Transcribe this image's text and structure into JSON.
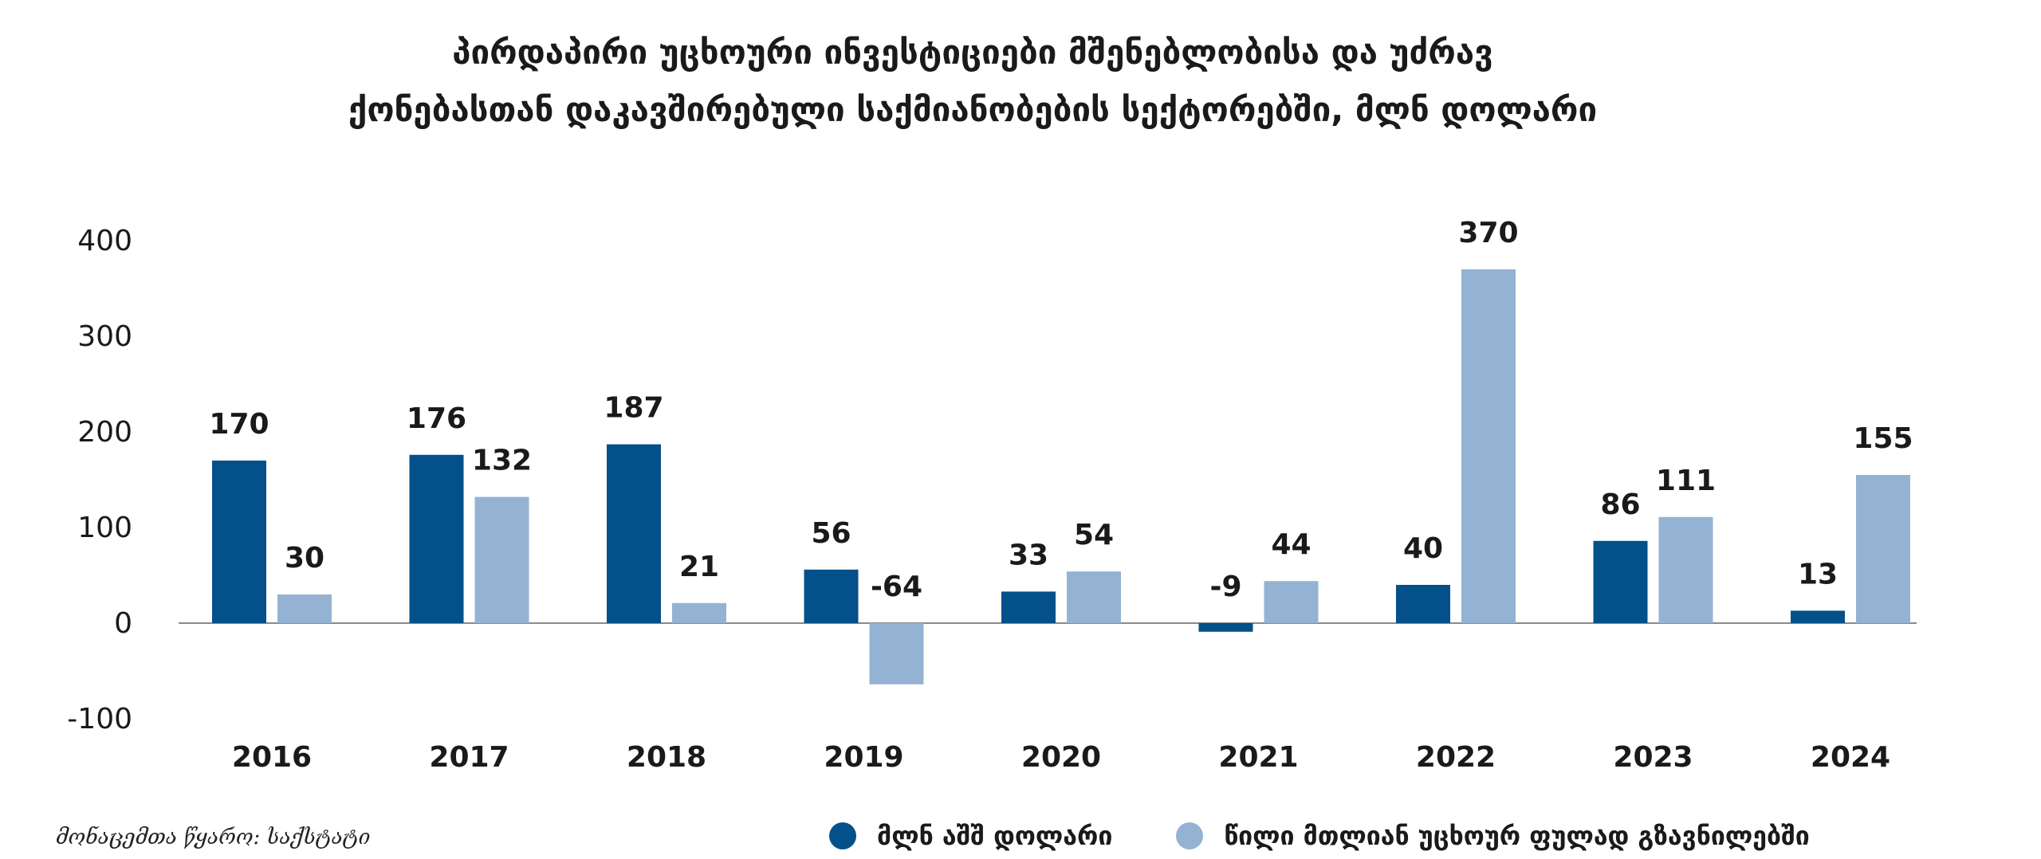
{
  "title_lines": [
    "პირდაპირი უცხოური ინვესტიციები მშენებლობისა და უძრავ",
    "ქონებასთან დაკავშირებული საქმიანობების სექტორებში, მლნ დოლარი"
  ],
  "source": "მონაცემთა წყარო: საქსტატი",
  "colors": {
    "series1": "#03508a",
    "series2": "#94b3d3"
  },
  "chart_data": {
    "type": "bar",
    "title": "პირდაპირი უცხოური ინვესტიციები მშენებლობისა და უძრავ ქონებასთან დაკავშირებული საქმიანობების სექტორებში, მლნ დოლარი",
    "categories": [
      "2016",
      "2017",
      "2018",
      "2019",
      "2020",
      "2021",
      "2022",
      "2023",
      "2024"
    ],
    "series": [
      {
        "name": "მლნ აშშ დოლარი",
        "values": [
          170,
          176,
          187,
          56,
          33,
          -9,
          40,
          86,
          13
        ]
      },
      {
        "name": "წილი მთლიან უცხოურ ფულად გზავნილებში",
        "values": [
          30,
          132,
          21,
          -64,
          54,
          44,
          370,
          111,
          155
        ]
      }
    ],
    "y_ticks": [
      "400",
      "300",
      "200",
      "100",
      "0",
      "-100"
    ],
    "ylim": [
      -100,
      400
    ],
    "grid": false,
    "legend": "bottom"
  }
}
